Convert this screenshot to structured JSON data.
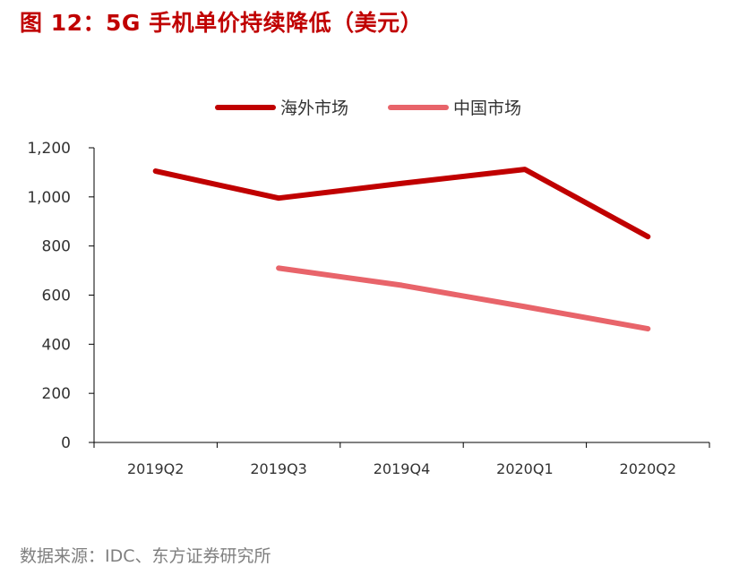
{
  "title": "图 12：5G 手机单价持续降低（美元）",
  "source": "数据来源：IDC、东方证券研究所",
  "chart_data": {
    "type": "line",
    "categories": [
      "2019Q2",
      "2019Q3",
      "2019Q4",
      "2020Q1",
      "2020Q2"
    ],
    "ylim": [
      0,
      1200
    ],
    "yticks": [
      "0",
      "200",
      "400",
      "600",
      "800",
      "1,000",
      "1,200"
    ],
    "ytick_values": [
      0,
      200,
      400,
      600,
      800,
      1000,
      1200
    ],
    "grid": false,
    "legend_position": "top",
    "series": [
      {
        "name": "海外市场",
        "color": "#c00000",
        "values": [
          1105,
          995,
          1055,
          1112,
          838
        ]
      },
      {
        "name": "中国市场",
        "color": "#e8646a",
        "values": [
          null,
          710,
          640,
          553,
          463
        ]
      }
    ]
  }
}
